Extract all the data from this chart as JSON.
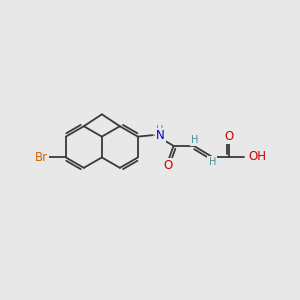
{
  "bg_color": "#e8e8e8",
  "bond_color": "#3a3a3a",
  "bond_width": 1.3,
  "atom_colors": {
    "Br": "#cc6600",
    "N": "#0000cc",
    "O": "#cc0000",
    "H": "#4a9090",
    "C": "#3a3a3a"
  },
  "font_size_atom": 8.5,
  "font_size_H": 7.0,
  "xlim": [
    0,
    10
  ],
  "ylim": [
    0,
    10
  ]
}
